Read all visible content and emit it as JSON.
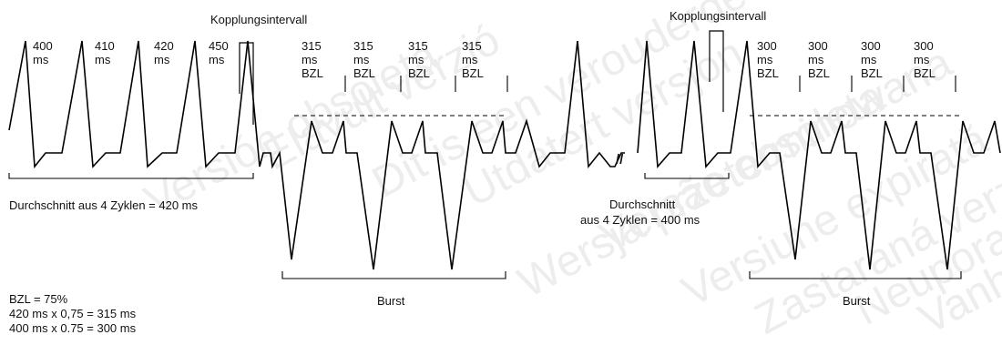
{
  "watermark": [
    "Versión obsoleta",
    "Elavult verzió",
    "Dit is een verouderde versie",
    "Utdatert versjon",
    "Wersja przeterminowana",
    "Versão obsoleta",
    "Versiune expirată",
    "Zastaraná verzia",
    "Neuporabljiva verzija",
    "Vanhentunut versio"
  ],
  "labels": {
    "coupling_1": "Kopplungsintervall",
    "coupling_2": "Kopplungsintervall",
    "avg_1": "Durchschnitt aus 4 Zyklen = 420 ms",
    "avg_2_line1": "Durchschnitt",
    "avg_2_line2": "aus 4 Zyklen = 400 ms",
    "burst_1": "Burst",
    "burst_2": "Burst",
    "break_mark": "//"
  },
  "cycle_intervals": [
    {
      "value": "400",
      "unit": "ms"
    },
    {
      "value": "410",
      "unit": "ms"
    },
    {
      "value": "420",
      "unit": "ms"
    },
    {
      "value": "450",
      "unit": "ms"
    }
  ],
  "burst_intervals_1": [
    {
      "value": "315",
      "unit": "ms",
      "tag": "BZL"
    },
    {
      "value": "315",
      "unit": "ms",
      "tag": "BZL"
    },
    {
      "value": "315",
      "unit": "ms",
      "tag": "BZL"
    },
    {
      "value": "315",
      "unit": "ms",
      "tag": "BZL"
    }
  ],
  "burst_intervals_2": [
    {
      "value": "300",
      "unit": "ms",
      "tag": "BZL"
    },
    {
      "value": "300",
      "unit": "ms",
      "tag": "BZL"
    },
    {
      "value": "300",
      "unit": "ms",
      "tag": "BZL"
    },
    {
      "value": "300",
      "unit": "ms",
      "tag": "BZL"
    }
  ],
  "formula": {
    "line1": "BZL = 75%",
    "line2": "420 ms x 0,75 = 315 ms",
    "line3": "400 ms x 0.75 = 300 ms"
  }
}
